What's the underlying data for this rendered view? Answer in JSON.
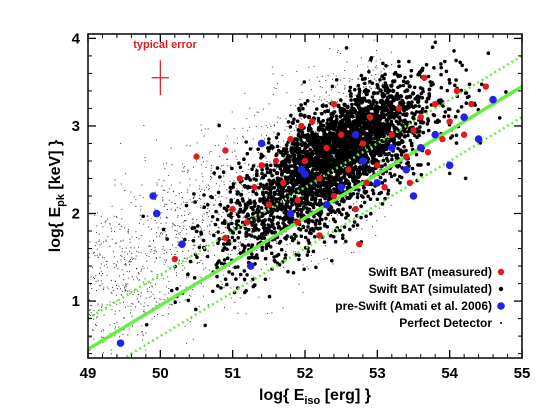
{
  "chart_data": {
    "type": "scatter",
    "xlabel": {
      "main": "log{ E",
      "sub": "iso",
      "tail": " [erg] }"
    },
    "ylabel": {
      "main": "log{ E",
      "sub": "pk",
      "tail": " [keV] }"
    },
    "xlim": [
      49,
      55
    ],
    "ylim": [
      0.35,
      4.05
    ],
    "x_ticks": [
      "49",
      "50",
      "51",
      "52",
      "53",
      "54",
      "55"
    ],
    "y_ticks": [
      "1",
      "2",
      "3",
      "4"
    ],
    "grid": false,
    "legend_position": "bottom-right",
    "annotation": {
      "text": "typical error",
      "color": "#e31a1c",
      "x": 50.0,
      "y": 3.55,
      "x_err": 0.12,
      "y_err": 0.2
    },
    "fit_line": {
      "color": "#66ee44",
      "slope": 0.5,
      "intercept": -24.05
    },
    "fit_bounds": {
      "color": "#66ee44",
      "offset": 0.35
    },
    "series": [
      {
        "name": "Swift BAT (measured)",
        "color": "#e31a1c",
        "marker": "large-dot",
        "points": [
          [
            50.5,
            2.65
          ],
          [
            50.9,
            2.72
          ],
          [
            50.9,
            1.72
          ],
          [
            51.0,
            2.05
          ],
          [
            51.1,
            2.4
          ],
          [
            51.3,
            2.3
          ],
          [
            51.4,
            2.55
          ],
          [
            51.5,
            2.1
          ],
          [
            51.6,
            2.6
          ],
          [
            51.7,
            2.35
          ],
          [
            51.8,
            2.85
          ],
          [
            51.9,
            2.15
          ],
          [
            52.0,
            2.6
          ],
          [
            52.1,
            3.05
          ],
          [
            52.2,
            2.4
          ],
          [
            52.3,
            2.75
          ],
          [
            52.4,
            2.2
          ],
          [
            52.5,
            2.9
          ],
          [
            52.6,
            2.5
          ],
          [
            52.7,
            2.05
          ],
          [
            52.8,
            2.8
          ],
          [
            52.9,
            3.1
          ],
          [
            53.0,
            2.55
          ],
          [
            53.1,
            2.3
          ],
          [
            53.2,
            2.9
          ],
          [
            53.3,
            3.2
          ],
          [
            53.4,
            2.65
          ],
          [
            53.5,
            2.95
          ],
          [
            53.6,
            3.1
          ],
          [
            53.7,
            2.7
          ],
          [
            53.8,
            3.25
          ],
          [
            53.9,
            2.85
          ],
          [
            54.0,
            3.05
          ],
          [
            54.1,
            3.4
          ],
          [
            54.2,
            2.9
          ],
          [
            54.3,
            3.25
          ],
          [
            54.5,
            3.45
          ],
          [
            51.2,
            1.9
          ],
          [
            51.9,
            1.9
          ],
          [
            52.2,
            1.75
          ],
          [
            52.75,
            1.65
          ],
          [
            52.85,
            2.35
          ],
          [
            53.45,
            2.35
          ],
          [
            52.4,
            3.25
          ],
          [
            51.95,
            3.0
          ],
          [
            53.65,
            3.55
          ],
          [
            50.2,
            1.48
          ]
        ]
      },
      {
        "name": "Swift BAT (simulated)",
        "color": "#000000",
        "marker": "dot"
      },
      {
        "name": "pre-Swift (Amati et al. 2006)",
        "color": "#2222ee",
        "marker": "large-dot",
        "points": [
          [
            49.45,
            0.52
          ],
          [
            49.9,
            2.2
          ],
          [
            49.95,
            2.0
          ],
          [
            50.3,
            1.65
          ],
          [
            51.25,
            1.4
          ],
          [
            51.4,
            2.8
          ],
          [
            51.8,
            2.0
          ],
          [
            52.0,
            2.45
          ],
          [
            52.3,
            2.1
          ],
          [
            52.5,
            2.3
          ],
          [
            52.8,
            2.6
          ],
          [
            53.0,
            2.35
          ],
          [
            53.2,
            2.75
          ],
          [
            53.4,
            2.5
          ],
          [
            53.6,
            2.75
          ],
          [
            53.8,
            2.9
          ],
          [
            54.0,
            2.55
          ],
          [
            54.2,
            3.1
          ],
          [
            54.4,
            2.85
          ],
          [
            53.5,
            2.2
          ],
          [
            52.7,
            2.9
          ],
          [
            51.95,
            2.5
          ],
          [
            54.6,
            3.3
          ]
        ]
      },
      {
        "name": "Perfect Detector",
        "color": "#000000",
        "marker": "small-dot"
      }
    ]
  }
}
